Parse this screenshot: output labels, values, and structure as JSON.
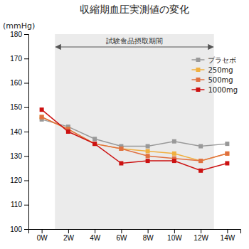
{
  "chart_data": {
    "type": "line",
    "title": "収縮期血圧実測値の変化",
    "ylabel": "(mmHg)",
    "categories": [
      "0W",
      "2W",
      "4W",
      "6W",
      "8W",
      "10W",
      "12W",
      "14W"
    ],
    "series": [
      {
        "name": "プラセボ",
        "color": "#999999",
        "marker": "square",
        "values": [
          145,
          142,
          137,
          134,
          134,
          136,
          134,
          135
        ]
      },
      {
        "name": "250mg",
        "color": "#f0b040",
        "marker": "square",
        "values": [
          146,
          141,
          135,
          133,
          132,
          131,
          128,
          131
        ]
      },
      {
        "name": "500mg",
        "color": "#e07040",
        "marker": "square",
        "values": [
          146,
          141,
          135,
          133,
          130,
          129,
          128,
          131
        ]
      },
      {
        "name": "1000mg",
        "color": "#cc1111",
        "marker": "square",
        "values": [
          149,
          140,
          135,
          127,
          128,
          128,
          124,
          127
        ]
      }
    ],
    "ylim": [
      100,
      180
    ],
    "yticks": [
      100,
      110,
      120,
      130,
      140,
      150,
      160,
      170,
      180
    ],
    "annotations": [
      {
        "text": "試験食品摂取期間",
        "x_start": "2W",
        "x_end": "12W",
        "color": "#ebebeb"
      }
    ],
    "legend": "upper right",
    "grid": false
  }
}
